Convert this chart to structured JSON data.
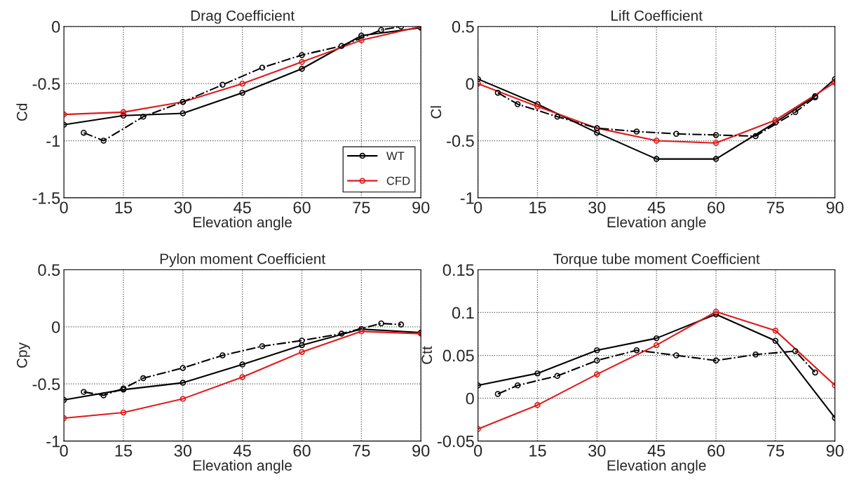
{
  "chart_data": [
    {
      "type": "line",
      "title": "Drag Coefficient",
      "xlabel": "Elevation angle",
      "ylabel": "Cd",
      "xlim": [
        0,
        90
      ],
      "xticks": [
        0,
        15,
        30,
        45,
        60,
        75,
        90
      ],
      "ylim": [
        -1.5,
        0
      ],
      "yticks": [
        -1.5,
        -1,
        -0.5,
        0
      ],
      "grid": true,
      "legend": "lower right",
      "marker": "circle",
      "series": [
        {
          "name": "WT",
          "color": "#000000",
          "line_style": "solid",
          "x": [
            0,
            15,
            30,
            45,
            60,
            75,
            90
          ],
          "values": [
            -0.86,
            -0.78,
            -0.76,
            -0.58,
            -0.37,
            -0.08,
            -0.01
          ]
        },
        {
          "name": "CFD",
          "color": "#e0191b",
          "line_style": "solid",
          "x": [
            0,
            15,
            30,
            45,
            60,
            75,
            90
          ],
          "values": [
            -0.77,
            -0.75,
            -0.66,
            -0.5,
            -0.31,
            -0.12,
            0.0
          ]
        },
        {
          "color": "#000000",
          "line_style": "dashdot",
          "x": [
            5,
            10,
            20,
            30,
            40,
            50,
            60,
            70,
            80,
            85
          ],
          "values": [
            -0.93,
            -1.0,
            -0.79,
            -0.66,
            -0.51,
            -0.36,
            -0.25,
            -0.17,
            -0.03,
            0.0
          ]
        }
      ]
    },
    {
      "type": "line",
      "title": "Lift Coefficient",
      "xlabel": "Elevation angle",
      "ylabel": "Cl",
      "xlim": [
        0,
        90
      ],
      "xticks": [
        0,
        15,
        30,
        45,
        60,
        75,
        90
      ],
      "ylim": [
        -1,
        0.5
      ],
      "yticks": [
        -1,
        -0.5,
        0,
        0.5
      ],
      "grid": true,
      "marker": "circle",
      "series": [
        {
          "color": "#000000",
          "line_style": "solid",
          "x": [
            0,
            15,
            30,
            45,
            60,
            75,
            85,
            90
          ],
          "values": [
            0.04,
            -0.18,
            -0.43,
            -0.66,
            -0.66,
            -0.34,
            -0.11,
            0.04
          ]
        },
        {
          "color": "#e0191b",
          "line_style": "solid",
          "x": [
            0,
            15,
            30,
            45,
            60,
            75,
            90
          ],
          "values": [
            0.0,
            -0.2,
            -0.39,
            -0.5,
            -0.52,
            -0.32,
            0.01
          ]
        },
        {
          "color": "#000000",
          "line_style": "dashdot",
          "x": [
            5,
            10,
            20,
            30,
            40,
            50,
            60,
            70,
            80,
            85
          ],
          "values": [
            -0.08,
            -0.18,
            -0.29,
            -0.39,
            -0.42,
            -0.44,
            -0.45,
            -0.46,
            -0.25,
            -0.12
          ]
        }
      ]
    },
    {
      "type": "line",
      "title": "Pylon moment Coefficient",
      "xlabel": "Elevation angle",
      "ylabel": "Cpy",
      "xlim": [
        0,
        90
      ],
      "xticks": [
        0,
        15,
        30,
        45,
        60,
        75,
        90
      ],
      "ylim": [
        -1,
        0.5
      ],
      "yticks": [
        -1,
        -0.5,
        0,
        0.5
      ],
      "grid": true,
      "marker": "circle",
      "series": [
        {
          "color": "#000000",
          "line_style": "solid",
          "x": [
            0,
            15,
            30,
            45,
            60,
            75,
            90
          ],
          "values": [
            -0.64,
            -0.55,
            -0.49,
            -0.33,
            -0.16,
            -0.02,
            -0.05
          ]
        },
        {
          "color": "#e0191b",
          "line_style": "solid",
          "x": [
            0,
            15,
            30,
            45,
            60,
            75,
            90
          ],
          "values": [
            -0.8,
            -0.75,
            -0.63,
            -0.44,
            -0.22,
            -0.04,
            -0.06
          ]
        },
        {
          "color": "#000000",
          "line_style": "dashdot",
          "x": [
            5,
            10,
            15,
            20,
            30,
            40,
            50,
            60,
            70,
            80,
            85
          ],
          "values": [
            -0.57,
            -0.6,
            -0.54,
            -0.45,
            -0.36,
            -0.25,
            -0.17,
            -0.12,
            -0.06,
            0.03,
            0.02
          ]
        }
      ]
    },
    {
      "type": "line",
      "title": "Torque tube moment Coefficient",
      "xlabel": "Elevation angle",
      "ylabel": "Ctt",
      "xlim": [
        0,
        90
      ],
      "xticks": [
        0,
        15,
        30,
        45,
        60,
        75,
        90
      ],
      "ylim": [
        -0.05,
        0.15
      ],
      "yticks": [
        -0.05,
        0,
        0.05,
        0.1,
        0.15
      ],
      "grid": true,
      "marker": "circle",
      "series": [
        {
          "color": "#000000",
          "line_style": "solid",
          "x": [
            0,
            15,
            30,
            45,
            60,
            75,
            90
          ],
          "values": [
            0.015,
            0.029,
            0.056,
            0.07,
            0.098,
            0.067,
            -0.023
          ]
        },
        {
          "color": "#e0191b",
          "line_style": "solid",
          "x": [
            0,
            15,
            30,
            45,
            60,
            75,
            90
          ],
          "values": [
            -0.036,
            -0.008,
            0.028,
            0.062,
            0.101,
            0.079,
            0.015
          ]
        },
        {
          "color": "#000000",
          "line_style": "dashdot",
          "x": [
            5,
            10,
            20,
            30,
            40,
            50,
            60,
            70,
            80,
            85
          ],
          "values": [
            0.005,
            0.015,
            0.026,
            0.044,
            0.056,
            0.05,
            0.044,
            0.051,
            0.055,
            0.03
          ]
        }
      ]
    }
  ]
}
